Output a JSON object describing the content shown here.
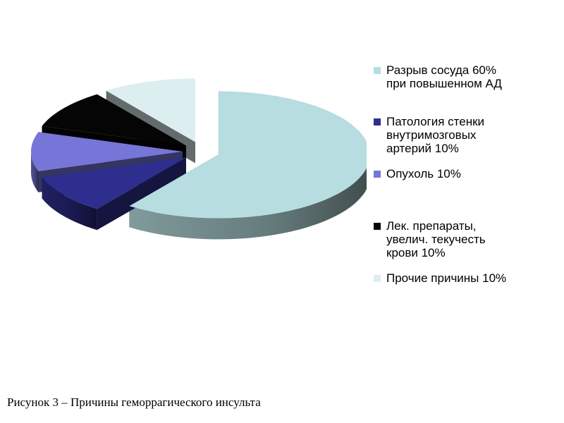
{
  "chart_data": {
    "type": "pie3d",
    "categories": [
      "Разрыв сосуда 60% при повышенном АД",
      "Патология стенки внутримозговых артерий 10%",
      "Опухоль 10%",
      "Лек. препараты, увелич. текучесть крови 10%",
      "Прочие причины 10%"
    ],
    "values": [
      60,
      10,
      10,
      10,
      10
    ],
    "colors": [
      "#b7dde0",
      "#2e2e8f",
      "#7676d8",
      "#050505",
      "#dcEEF0"
    ],
    "legend": "right",
    "caption": "Рисунок 3 – Причины геморрагического инсульта"
  }
}
